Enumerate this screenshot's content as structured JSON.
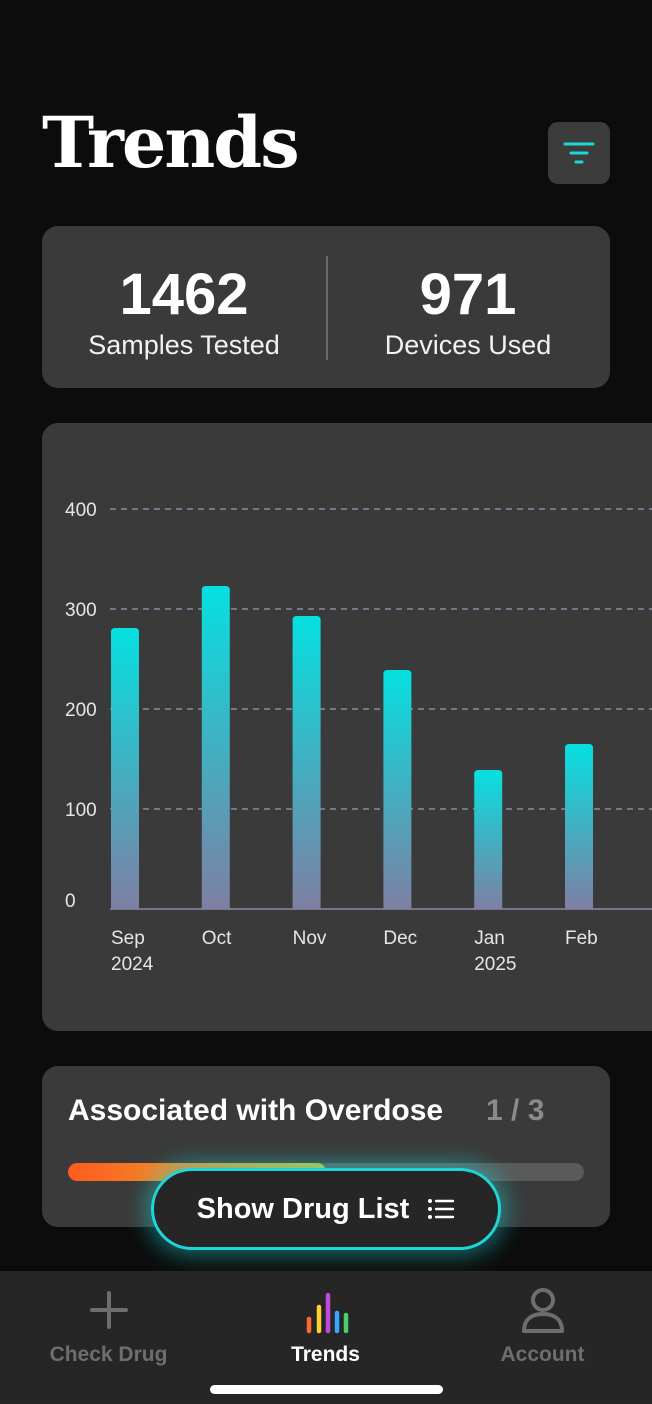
{
  "header": {
    "title": "Trends"
  },
  "icons": {
    "filter": "filter-icon",
    "list": "list-icon",
    "check_drug": "plus-icon",
    "trends": "bar-chart-icon",
    "account": "person-icon"
  },
  "stats": {
    "samples": {
      "value": "1462",
      "label": "Samples Tested"
    },
    "devices": {
      "value": "971",
      "label": "Devices Used"
    }
  },
  "chart_data": {
    "type": "bar",
    "categories": [
      "Sep 2024",
      "Oct",
      "Nov",
      "Dec",
      "Jan 2025",
      "Feb"
    ],
    "tick_labels": [
      [
        "Sep",
        "2024"
      ],
      [
        "Oct"
      ],
      [
        "Nov"
      ],
      [
        "Dec"
      ],
      [
        "Jan",
        "2025"
      ],
      [
        "Feb"
      ]
    ],
    "values": [
      281,
      323,
      293,
      239,
      139,
      165
    ],
    "ylim": [
      0,
      400
    ],
    "yticks": [
      0,
      100,
      200,
      300,
      400
    ],
    "grid": true,
    "title": "",
    "xlabel": "",
    "ylabel": ""
  },
  "overdose": {
    "title": "Associated with Overdose",
    "page": "1 / 3",
    "progress": 0.5
  },
  "show_list_button": {
    "label": "Show Drug List"
  },
  "nav": {
    "items": [
      {
        "label": "Check Drug",
        "active": false
      },
      {
        "label": "Trends",
        "active": true
      },
      {
        "label": "Account",
        "active": false
      }
    ]
  },
  "colors": {
    "accent": "#1ed6d6",
    "bar_top": "#06e0e0",
    "bar_bottom": "#7e7fa3",
    "card": "#3a3a3a",
    "background": "#0c0c0c"
  }
}
